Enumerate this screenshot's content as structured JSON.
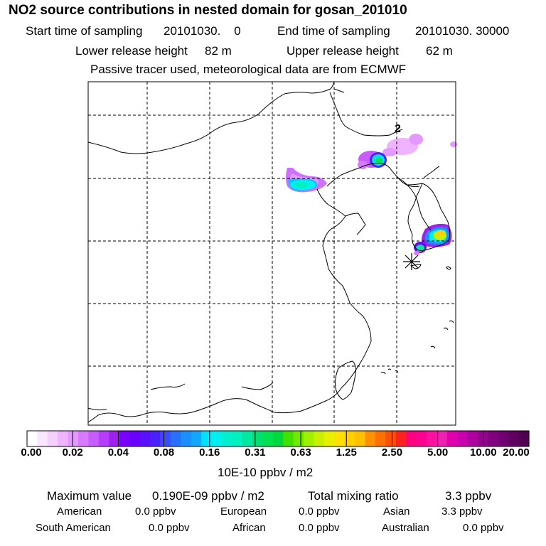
{
  "header": {
    "title": "NO2 source contributions in nested domain for gosan_201010",
    "start_label": "Start time of sampling",
    "start_value": "20101030.    0",
    "end_label": "End time of sampling",
    "end_value": "20101030. 30000",
    "lower_label": "Lower release height",
    "lower_value": "82 m",
    "upper_label": "Upper release height",
    "upper_value": "62 m",
    "note": "Passive tracer used, meteorological data are from ECMWF"
  },
  "map": {
    "marker_label": "2",
    "receptor_symbol": "asterisk"
  },
  "colorbar": {
    "ticks": [
      "0.00",
      "0.02",
      "0.04",
      "0.08",
      "0.16",
      "0.31",
      "0.63",
      "1.25",
      "2.50",
      "5.00",
      "10.00",
      "20.00"
    ],
    "unit": "10E-10 ppbv / m2",
    "colors": [
      "#ffffff",
      "#fbe6ff",
      "#f5d0ff",
      "#efb3ff",
      "#e399ff",
      "#d77aff",
      "#c85cff",
      "#b63dff",
      "#a020f0",
      "#7a00ff",
      "#6a00ff",
      "#5a10ff",
      "#4a20ff",
      "#3a4cff",
      "#2a70ff",
      "#1a8fff",
      "#10a8ff",
      "#00e0ff",
      "#00f0f0",
      "#00f0d0",
      "#00f0c0",
      "#00e8a0",
      "#00e070",
      "#00e050",
      "#00d840",
      "#40e000",
      "#70e800",
      "#a0f000",
      "#c8f000",
      "#e8f000",
      "#ffe000",
      "#ffd000",
      "#ffc000",
      "#ff9000",
      "#ff7000",
      "#ff5000",
      "#ff2020",
      "#ff0080",
      "#ff0090",
      "#ff10a0",
      "#f020b0",
      "#e000b0",
      "#c800b0",
      "#b000a0",
      "#980090",
      "#800080",
      "#700070",
      "#600060",
      "#500050"
    ]
  },
  "stats": {
    "max_label": "Maximum value",
    "max_value": "0.190E-09 ppbv / m2",
    "total_label": "Total mixing ratio",
    "total_value": "3.3 ppbv",
    "regions": [
      {
        "name": "American",
        "value": "0.0 ppbv"
      },
      {
        "name": "European",
        "value": "0.0 ppbv"
      },
      {
        "name": "Asian",
        "value": "3.3 ppbv"
      },
      {
        "name": "South American",
        "value": "0.0 ppbv"
      },
      {
        "name": "African",
        "value": "0.0 ppbv"
      },
      {
        "name": "Australian",
        "value": "0.0 ppbv"
      }
    ]
  }
}
